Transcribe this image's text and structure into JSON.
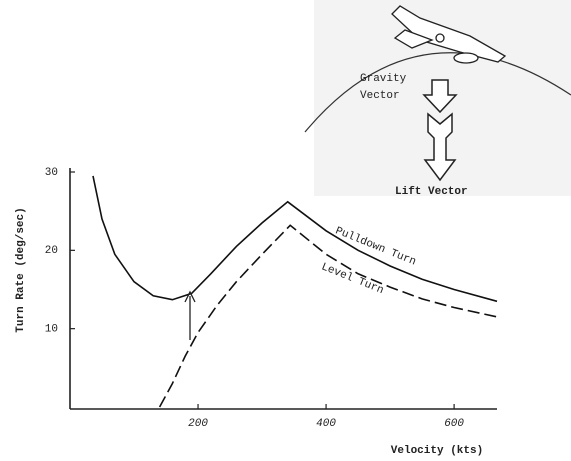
{
  "chart_data": {
    "type": "line",
    "y_label": "Turn Rate (deg/sec)",
    "x_label": "Velocity (kts)",
    "xlim": [
      0,
      667
    ],
    "ylim": [
      0,
      30
    ],
    "xticks": [
      200,
      400,
      600
    ],
    "yticks": [
      10,
      20,
      30
    ],
    "series": [
      {
        "name": "Pulldown Turn",
        "color": "#111111",
        "line_style": "solid",
        "x": [
          36,
          50,
          70,
          100,
          130,
          160,
          190,
          220,
          260,
          300,
          340,
          400,
          450,
          500,
          550,
          600,
          667
        ],
        "values": [
          29.5,
          24,
          19.5,
          16,
          14.2,
          13.7,
          14.5,
          17,
          20.5,
          23.5,
          26.2,
          22.5,
          20,
          18,
          16.3,
          15,
          13.5
        ]
      },
      {
        "name": "Level Turn",
        "color": "#111111",
        "line_style": "dashed",
        "x": [
          140,
          160,
          180,
          200,
          230,
          260,
          300,
          344,
          400,
          450,
          500,
          550,
          600,
          667
        ],
        "values": [
          0,
          3,
          6.5,
          9.5,
          13,
          16,
          19.5,
          23.2,
          19.5,
          17,
          15.3,
          13.8,
          12.7,
          11.5
        ]
      }
    ],
    "inset": {
      "gravity_label": [
        "Gravity",
        "Vector"
      ],
      "lift_label": "Lift Vector"
    }
  }
}
